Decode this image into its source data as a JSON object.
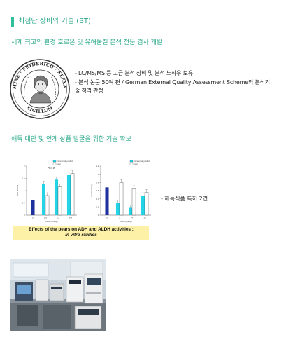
{
  "page": {
    "title": "최첨단 장비와 기술 (BT)"
  },
  "section1": {
    "heading": "세계 최고의 환경 호르몬 및 유해물질 분석 전문 검사 개발",
    "seal": {
      "top_text": "FRIDERICO",
      "left_text": "ACADEMIAE",
      "right_text": "ALEXANDRAE",
      "bottom_text": "SIGILLUM"
    },
    "bullet1": "- LC/MS/MS 등 고급 분석 장비 및 분석 노하우 보유",
    "bullet2_line1": "- 분석 논문 50여 편 / German External Quality Assessment Scheme의 분석기",
    "bullet2_line2": "술 적격 판정"
  },
  "section2": {
    "heading": "해독 대안 및 연계 상품 발굴을 위한 기술 확보",
    "side_note": "- 해독식품 특허 2건",
    "caption_line1": "Effects of the pears on ADH and ALDH activities :",
    "caption_line2": "in vitro studies"
  },
  "chart_data": [
    {
      "type": "bar",
      "title": "",
      "ylabel": "ADH activity",
      "xlabel": "Dose (ml/kg)",
      "categories": [
        "0",
        "1.6",
        "3.2",
        "6.4"
      ],
      "legend": [
        "commercial product",
        "pear"
      ],
      "significance_label": "*P<0.05",
      "series": [
        {
          "name": "commercial product",
          "values": [
            0.62,
            1.27,
            1.45,
            1.63
          ],
          "color": "#22d4e6"
        },
        {
          "name": "pear",
          "values": [
            0.0,
            0.8,
            1.15,
            1.7
          ],
          "color": "#ffffff"
        }
      ],
      "control_bar": {
        "category": "0",
        "value": 0.62,
        "color": "#1e2f9e"
      },
      "ylim": [
        0,
        2.0
      ],
      "yticks": [
        0,
        0.5,
        1.0,
        1.5,
        2.0
      ]
    },
    {
      "type": "bar",
      "title": "",
      "ylabel": "ALDH activity",
      "xlabel": "Dose (ml/kg)",
      "categories": [
        "0",
        "1",
        "4",
        "16"
      ],
      "legend": [
        "commercial product",
        "pear"
      ],
      "series": [
        {
          "name": "commercial product",
          "values": [
            0.0,
            0.3,
            0.18,
            0.48
          ],
          "color": "#22d4e6"
        },
        {
          "name": "pear",
          "values": [
            0.0,
            0.8,
            0.66,
            0.56
          ],
          "color": "#ffffff"
        }
      ],
      "control_bar": {
        "category": "0",
        "value": 0.68,
        "color": "#1e2f9e"
      },
      "ylim": [
        0,
        1.2
      ],
      "yticks": [
        0,
        0.2,
        0.4,
        0.6,
        0.8,
        1.0,
        1.2
      ]
    }
  ],
  "colors": {
    "accent": "#2aa889",
    "caption_bg": "#fdf1a8"
  }
}
